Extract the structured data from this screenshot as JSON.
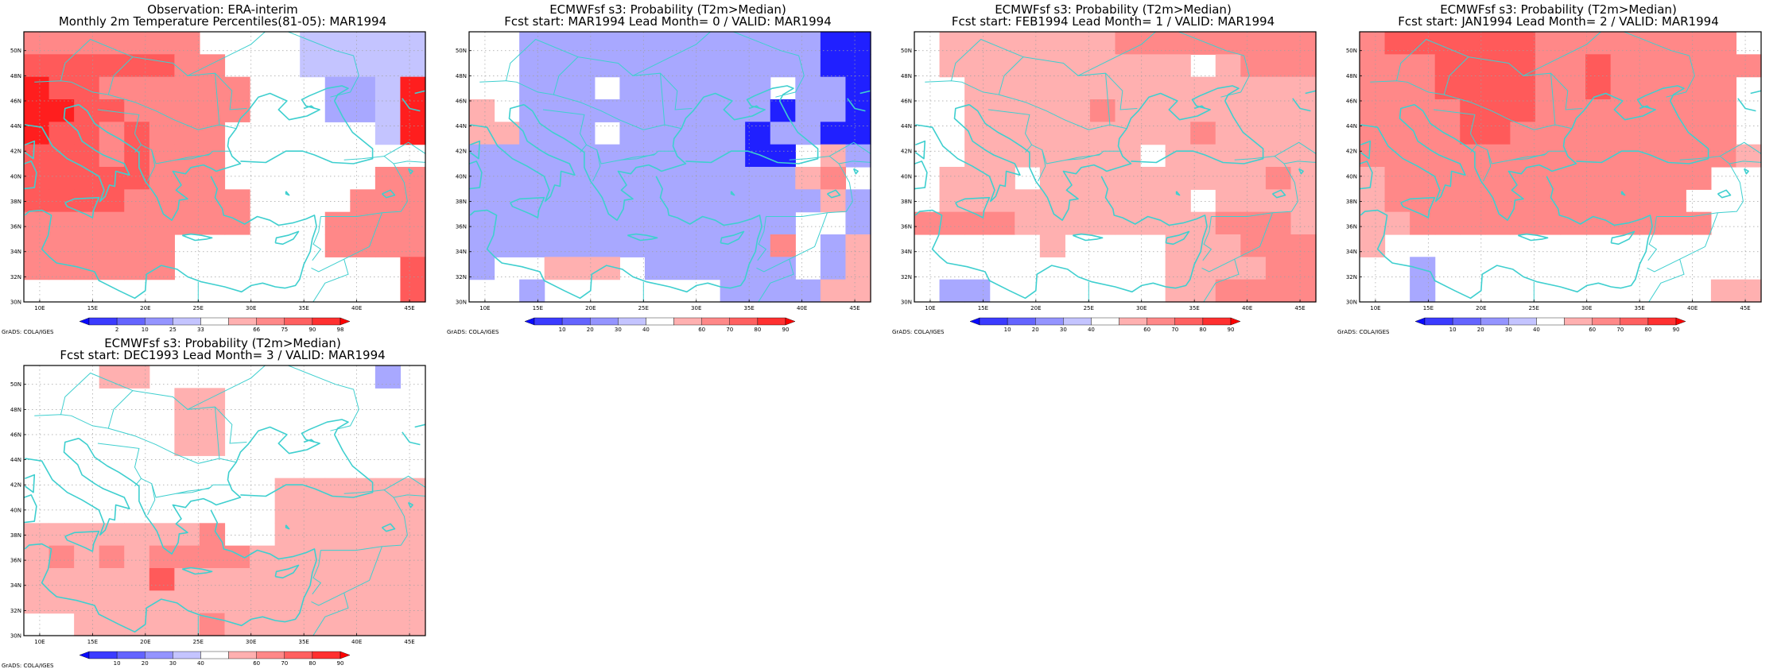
{
  "figure": "ERA-interim observed vs ECMWF System 3 forecast probability of 2m temperature above median, MAR1994",
  "colors": {
    "frame": "#000000",
    "coast": "#3fcfcf",
    "grid": "#a0a0a0"
  },
  "legends": {
    "percentile": {
      "colors": [
        "#0a0aff",
        "#3b3bff",
        "#6464ff",
        "#9494ff",
        "#c4c4ff",
        "#ffffff",
        "#ffb0b0",
        "#ff8888",
        "#ff6060",
        "#ff3030",
        "#ff0000"
      ],
      "labels": [
        "2",
        "10",
        "25",
        "33",
        "66",
        "75",
        "90",
        "98"
      ]
    },
    "probability": {
      "colors": [
        "#0a0aff",
        "#3b3bff",
        "#6464ff",
        "#9494ff",
        "#c4c4ff",
        "#ffffff",
        "#ffb0b0",
        "#ff8888",
        "#ff6060",
        "#ff3030",
        "#ff0000"
      ],
      "labels": [
        "10",
        "20",
        "30",
        "40",
        "60",
        "70",
        "80",
        "90"
      ]
    }
  },
  "axes": {
    "lon_labels": [
      "10E",
      "15E",
      "20E",
      "25E",
      "30E",
      "35E",
      "40E",
      "45E"
    ],
    "lat_labels": [
      "30N",
      "32N",
      "34N",
      "36N",
      "38N",
      "40N",
      "42N",
      "44N",
      "46N",
      "48N",
      "50N"
    ]
  },
  "credit": "GrADS: COLA/IGES",
  "panels": [
    {
      "id": "obs",
      "title1": "Observation: ERA-interim",
      "title2": "Monthly 2m Temperature Percentiles(81-05): MAR1994",
      "legend": "percentile",
      "grid": [
        "bbbbbbbwwwwhhhhh",
        "vvvvvvbbwwwhhhhh",
        "VvvbbbbbbwwwxxhV",
        "VVvvbbbbbwwwxxhV",
        "VvvbvbbbwwwwwwhV",
        "vvvbvbbbwwwwwwww",
        "vvvvvbbbwwwwwwbb",
        "vvvvbbbbbwwwwbbb",
        "bbbbbbbbbwwwbbbb",
        "bbbbbbwwwwwwbbbb",
        "bbbbbbwwwwwwwwwv",
        "wwwwwwwwwwwwwwwv"
      ]
    },
    {
      "id": "lead0",
      "title1": "ECMWFsf s3: Probability (T2m>Median)",
      "title2": "Fcst start: MAR1994   Lead Month= 0 / VALID: MAR1994",
      "legend": "probability",
      "grid": [
        "wwxxxxxxxxxxxxOO",
        "wwxxxxxxxxxxxxOO",
        "wwxxxwxxxxxxwxxO",
        "pwxxxxxxxxxxOxxO",
        "ppxxxwxxxxxOxxOO",
        "xxxxxxxxxxxOOwpx",
        "xxxxxxxxxxxxxpbw",
        "xxxxxxxxxxxxxxpx",
        "xxxxxxxxxxxxxwwx",
        "xxxxxxxxxxxxbwxp",
        "xwwpppwxxxxxxwxpb",
        "wwxwwwwwwwxxxxpp"
      ]
    },
    {
      "id": "lead1",
      "title1": "ECMWFsf s3: Probability (T2m>Median)",
      "title2": "Fcst start: FEB1994   Lead Month= 1 / VALID: MAR1994",
      "legend": "probability",
      "grid": [
        "wpppppppbbbbbbbb",
        "wppppppppppwpbbb",
        "wwpppppppppppppp",
        "wwpppppbpppppppp",
        "wwpppppppppbpppp",
        "wwpppppppwpppppp",
        "wpppwpppppppppbp",
        "wppppppppppwpppp",
        "bbbbppppppppbbbp",
        "wwwwwpwwwwpppbbb",
        "wwwwwwwwwwppppbbb",
        "wxxwwwwwwwppbbbb"
      ]
    },
    {
      "id": "lead2",
      "title1": "ECMWFsf s3: Probability (T2m>Median)",
      "title2": "Fcst start: JAN1994   Lead Month= 2 / VALID: MAR1994",
      "legend": "probability",
      "grid": [
        "bvvvvvvbbbbbbbbw",
        "bbbvvvvbbvbbbbbb",
        "bbbvvvvbbvbbbbbw",
        "bbbbvvvbbbbbbbbw",
        "bbbbvvbbbbbbbbbw",
        "bbbbbbbbbbbbbbbp",
        "pbbbbbbbbbbbbbww",
        "pbbbbbbbbbbbbwww",
        "ppbbbbbbbbbbbbww",
        "pwwwwwwwwwwwwwww",
        "wwxwwwwwwwwwwwww",
        "wwxwwwwwwwwwwwpp"
      ]
    },
    {
      "id": "lead3",
      "title1": "ECMWFsf s3: Probability (T2m>Median)",
      "title2": "Fcst start: DEC1993   Lead Month= 3 / VALID: MAR1994",
      "legend": "probability",
      "grid": [
        "wwwppwwwwwwwwwxw",
        "wwwwwwppwwwwwwww",
        "wwwwwwppwwwwwwww",
        "wwwwwwppwwwwwwww",
        "wwwwwwwwwwwwwwww",
        "wwwwwwwwwwpppppp",
        "wwwwwwwwwwpppppp",
        "pppppppbwwpppppp",
        "pbpbpbbbbppppppp",
        "pppppvppppppppppp",
        "pppppppppppppppp",
        "wwpppppbpppppppp"
      ]
    }
  ]
}
